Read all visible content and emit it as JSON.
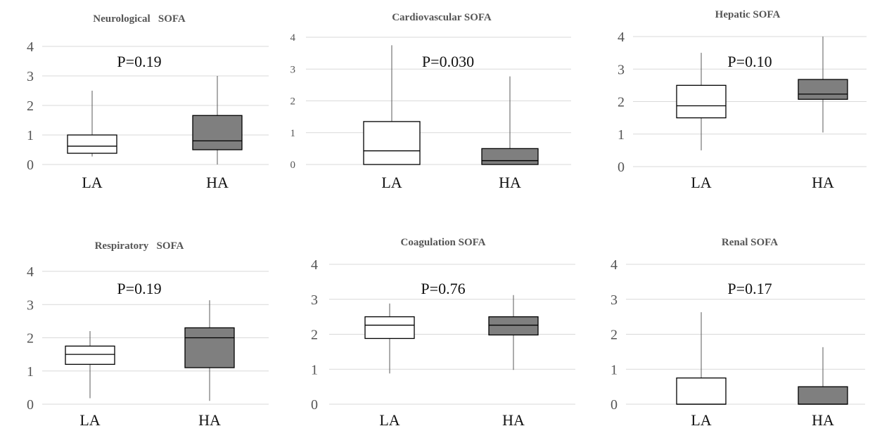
{
  "chart_data": [
    {
      "type": "boxplot",
      "title": "Neurological   SOFA",
      "annotation": "P=0.19",
      "categories": [
        "LA",
        "HA"
      ],
      "y_ticks": [
        "0",
        "1",
        "2",
        "3",
        "4"
      ],
      "ylim": [
        0,
        4
      ],
      "grid": true,
      "boxes": [
        {
          "category": "LA",
          "min": 0.27,
          "q1": 0.38,
          "median": 0.62,
          "q3": 1.0,
          "max": 2.5,
          "fill": "#ffffff"
        },
        {
          "category": "HA",
          "min": 0.0,
          "q1": 0.5,
          "median": 0.8,
          "q3": 1.66,
          "max": 3.0,
          "fill": "#7f7f7f"
        }
      ]
    },
    {
      "type": "boxplot",
      "title": "Cardiovascular SOFA",
      "annotation": "P=0.030",
      "categories": [
        "LA",
        "HA"
      ],
      "y_ticks": [
        "0",
        "1",
        "2",
        "3",
        "4"
      ],
      "ylim": [
        0,
        4
      ],
      "grid": true,
      "boxes": [
        {
          "category": "LA",
          "min": 0.0,
          "q1": 0.0,
          "median": 0.43,
          "q3": 1.35,
          "max": 3.75,
          "fill": "#ffffff"
        },
        {
          "category": "HA",
          "min": 0.0,
          "q1": 0.0,
          "median": 0.12,
          "q3": 0.5,
          "max": 2.77,
          "fill": "#7f7f7f"
        }
      ]
    },
    {
      "type": "boxplot",
      "title": "Hepatic SOFA",
      "annotation": "P=0.10",
      "categories": [
        "LA",
        "HA"
      ],
      "y_ticks": [
        "0",
        "1",
        "2",
        "3",
        "4"
      ],
      "ylim": [
        0,
        4
      ],
      "grid": true,
      "boxes": [
        {
          "category": "LA",
          "min": 0.5,
          "q1": 1.5,
          "median": 1.87,
          "q3": 2.5,
          "max": 3.5,
          "fill": "#ffffff"
        },
        {
          "category": "HA",
          "min": 1.05,
          "q1": 2.07,
          "median": 2.23,
          "q3": 2.68,
          "max": 4.0,
          "fill": "#7f7f7f"
        }
      ]
    },
    {
      "type": "boxplot",
      "title": "Respiratory   SOFA",
      "annotation": "P=0.19",
      "categories": [
        "LA",
        "HA"
      ],
      "y_ticks": [
        "0",
        "1",
        "2",
        "3",
        "4"
      ],
      "ylim": [
        0,
        4
      ],
      "grid": true,
      "boxes": [
        {
          "category": "LA",
          "min": 0.18,
          "q1": 1.2,
          "median": 1.5,
          "q3": 1.75,
          "max": 2.2,
          "fill": "#ffffff"
        },
        {
          "category": "HA",
          "min": 0.1,
          "q1": 1.1,
          "median": 2.0,
          "q3": 2.3,
          "max": 3.13,
          "fill": "#7f7f7f"
        }
      ]
    },
    {
      "type": "boxplot",
      "title": "Coagulation SOFA",
      "annotation": "P=0.76",
      "categories": [
        "LA",
        "HA"
      ],
      "y_ticks": [
        "0",
        "1",
        "2",
        "3",
        "4"
      ],
      "ylim": [
        0,
        4
      ],
      "grid": true,
      "boxes": [
        {
          "category": "LA",
          "min": 0.88,
          "q1": 1.88,
          "median": 2.26,
          "q3": 2.5,
          "max": 2.88,
          "fill": "#ffffff"
        },
        {
          "category": "HA",
          "min": 0.98,
          "q1": 1.98,
          "median": 2.26,
          "q3": 2.5,
          "max": 3.12,
          "fill": "#7f7f7f"
        }
      ]
    },
    {
      "type": "boxplot",
      "title": "Renal SOFA",
      "annotation": "P=0.17",
      "categories": [
        "LA",
        "HA"
      ],
      "y_ticks": [
        "0",
        "1",
        "2",
        "3",
        "4"
      ],
      "ylim": [
        0,
        4
      ],
      "grid": true,
      "boxes": [
        {
          "category": "LA",
          "min": 0.0,
          "q1": 0.0,
          "median": 0.0,
          "q3": 0.75,
          "max": 2.63,
          "fill": "#ffffff"
        },
        {
          "category": "HA",
          "min": 0.0,
          "q1": 0.0,
          "median": 0.0,
          "q3": 0.5,
          "max": 1.63,
          "fill": "#7f7f7f"
        }
      ]
    }
  ]
}
